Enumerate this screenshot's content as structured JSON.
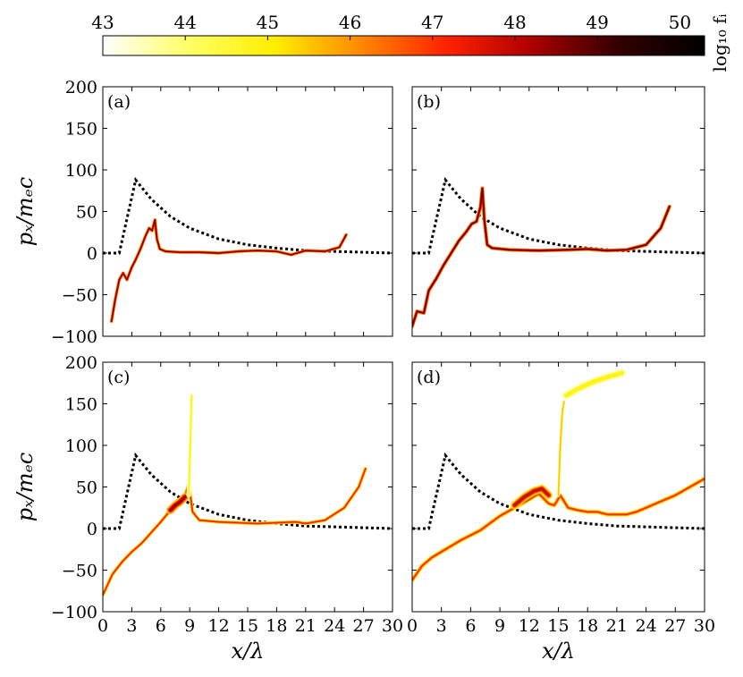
{
  "colorbar": {
    "label": "log₁₀ fᵢ",
    "ticks": [
      "43",
      "44",
      "45",
      "46",
      "47",
      "48",
      "49",
      "50"
    ],
    "range": [
      43,
      50.3
    ],
    "colormap": [
      "#ffffff",
      "#ffff66",
      "#ffee00",
      "#ff8800",
      "#ff2200",
      "#aa0000",
      "#330000",
      "#000000"
    ]
  },
  "axes": {
    "xlabel": "x/λ",
    "ylabel": "pₓ/mₑc",
    "xticks": [
      "0",
      "3",
      "6",
      "9",
      "12",
      "15",
      "18",
      "21",
      "24",
      "27",
      "30"
    ],
    "yticks": [
      "−100",
      "−50",
      "0",
      "50",
      "100",
      "150",
      "200"
    ]
  },
  "chart_data": [
    {
      "type": "line",
      "panel_label": "(a)",
      "xlim": [
        0,
        30
      ],
      "ylim": [
        -100,
        200
      ],
      "series": [
        {
          "style": "dotted-black",
          "x": [
            0,
            1.7,
            3.4,
            5,
            7,
            9,
            12,
            15,
            18,
            21,
            24,
            27,
            30
          ],
          "y": [
            0,
            0,
            88,
            65,
            44,
            30,
            17,
            10,
            6,
            3,
            2,
            1,
            0
          ]
        },
        {
          "style": "phase-space",
          "level": 48.5,
          "width": 1.4,
          "x": [
            0.9,
            1.3,
            1.7,
            2.1,
            2.5,
            3.0,
            3.4,
            3.9,
            4.4,
            4.8,
            5.1,
            5.4,
            5.6,
            5.9,
            6.5,
            8,
            10,
            12,
            14,
            16,
            18,
            19.5,
            21,
            23,
            24.5,
            25.2
          ],
          "y": [
            -82,
            -55,
            -32,
            -24,
            -32,
            -17,
            -8,
            5,
            20,
            30,
            27,
            40,
            17,
            5,
            2,
            1,
            1,
            0,
            2,
            3,
            2,
            -2,
            3,
            2,
            7,
            22
          ]
        }
      ]
    },
    {
      "type": "line",
      "panel_label": "(b)",
      "xlim": [
        0,
        30
      ],
      "ylim": [
        -100,
        200
      ],
      "series": [
        {
          "style": "dotted-black",
          "x": [
            0,
            1.7,
            3.4,
            5,
            7,
            9,
            12,
            15,
            18,
            21,
            24,
            27,
            30
          ],
          "y": [
            0,
            0,
            88,
            65,
            44,
            30,
            17,
            10,
            6,
            3,
            2,
            1,
            0
          ]
        },
        {
          "style": "phase-space",
          "level": 48.7,
          "width": 1.6,
          "x": [
            0,
            0.5,
            1.2,
            1.7,
            2.5,
            3.2,
            4.0,
            4.8,
            5.5,
            6.1,
            6.6,
            7.0,
            7.2,
            7.4,
            7.7,
            8.2,
            10,
            13,
            16,
            18,
            20,
            22,
            24,
            25.5,
            26.4
          ],
          "y": [
            -88,
            -70,
            -72,
            -45,
            -30,
            -15,
            0,
            15,
            25,
            35,
            38,
            55,
            78,
            40,
            10,
            6,
            4,
            3,
            4,
            5,
            3,
            4,
            10,
            30,
            56
          ]
        }
      ]
    },
    {
      "type": "line",
      "panel_label": "(c)",
      "xlim": [
        0,
        30
      ],
      "ylim": [
        -100,
        200
      ],
      "series": [
        {
          "style": "dotted-black",
          "x": [
            0,
            1.7,
            3.4,
            5,
            7,
            9,
            12,
            15,
            18,
            21,
            24,
            27,
            30
          ],
          "y": [
            0,
            0,
            88,
            65,
            44,
            30,
            17,
            10,
            6,
            3,
            2,
            1,
            0
          ]
        },
        {
          "style": "phase-space",
          "level": 47.2,
          "width": 1.6,
          "x": [
            0,
            1,
            2,
            3,
            4,
            5,
            6,
            7,
            7.8,
            8.5,
            8.9,
            9.3,
            10,
            12,
            14,
            16,
            18,
            20,
            21,
            23,
            25,
            26.5,
            27.2
          ],
          "y": [
            -80,
            -55,
            -40,
            -28,
            -18,
            -5,
            8,
            22,
            30,
            38,
            55,
            20,
            10,
            8,
            7,
            6,
            7,
            8,
            6,
            10,
            25,
            50,
            72
          ]
        },
        {
          "style": "phase-space",
          "level": 48.2,
          "width": 3.5,
          "x": [
            7.0,
            7.5,
            8.0,
            8.5
          ],
          "y": [
            22,
            28,
            32,
            38
          ]
        },
        {
          "style": "phase-space",
          "level": 44.8,
          "width": 2.0,
          "x": [
            8.9,
            9.0,
            9.1,
            9.2
          ],
          "y": [
            40,
            80,
            120,
            160
          ]
        }
      ]
    },
    {
      "type": "line",
      "panel_label": "(d)",
      "xlim": [
        0,
        30
      ],
      "ylim": [
        -100,
        200
      ],
      "series": [
        {
          "style": "dotted-black",
          "x": [
            0,
            1.7,
            3.4,
            5,
            7,
            9,
            12,
            15,
            18,
            21,
            24,
            27,
            30
          ],
          "y": [
            0,
            0,
            88,
            65,
            44,
            30,
            17,
            10,
            6,
            3,
            2,
            1,
            0
          ]
        },
        {
          "style": "phase-space",
          "level": 47.0,
          "width": 2.0,
          "x": [
            0,
            1,
            2,
            3,
            5,
            7,
            9,
            10.5,
            12,
            13,
            14,
            14.6,
            15.2,
            16,
            17,
            18,
            19,
            20,
            21,
            22,
            23,
            25,
            27,
            30
          ],
          "y": [
            -62,
            -45,
            -35,
            -28,
            -14,
            -2,
            15,
            25,
            35,
            42,
            30,
            28,
            40,
            25,
            22,
            20,
            20,
            17,
            17,
            17,
            20,
            30,
            40,
            60
          ]
        },
        {
          "style": "phase-space",
          "level": 47.8,
          "width": 3.5,
          "x": [
            10.5,
            11.5,
            12.5,
            13.3,
            14.0
          ],
          "y": [
            28,
            38,
            45,
            48,
            40
          ]
        },
        {
          "style": "phase-space",
          "level": 45.5,
          "width": 1.6,
          "x": [
            15.0,
            15.2,
            15.4,
            15.7
          ],
          "y": [
            40,
            100,
            140,
            160
          ]
        },
        {
          "style": "phase-space",
          "level": 44.8,
          "width": 5.0,
          "x": [
            15.8,
            17,
            18.5,
            20,
            21.5
          ],
          "y": [
            160,
            168,
            176,
            182,
            187
          ]
        }
      ]
    }
  ]
}
